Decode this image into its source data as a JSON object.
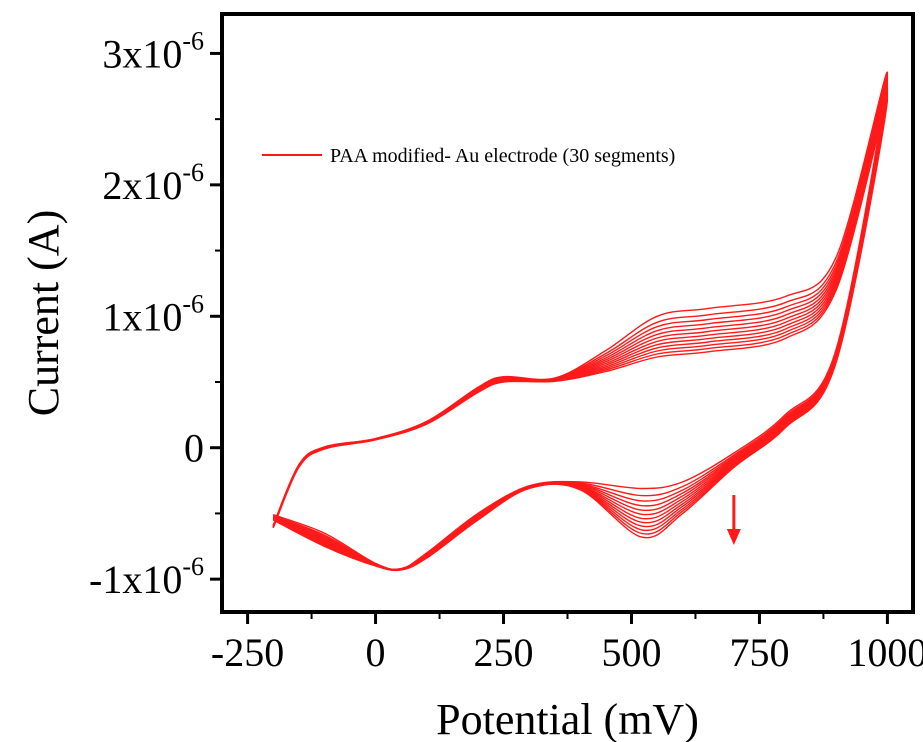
{
  "chart_data": {
    "type": "line",
    "title": "",
    "xlabel": "Potential (mV)",
    "ylabel": "Current (A)",
    "xlim": [
      -300,
      1050
    ],
    "ylim": [
      -1.25e-06,
      3.3e-06
    ],
    "x_ticks": [
      -250,
      0,
      250,
      500,
      750,
      1000
    ],
    "x_tick_labels": [
      "-250",
      "0",
      "250",
      "500",
      "750",
      "1000"
    ],
    "y_ticks": [
      {
        "value": -1e-06,
        "label": "-1x10",
        "exp": "-6"
      },
      {
        "value": 0,
        "label": "0",
        "exp": ""
      },
      {
        "value": 1e-06,
        "label": "1x10",
        "exp": "-6"
      },
      {
        "value": 2e-06,
        "label": "2x10",
        "exp": "-6"
      },
      {
        "value": 3e-06,
        "label": "3x10",
        "exp": "-6"
      }
    ],
    "grid": false,
    "legend": {
      "placement": "top-left",
      "label": "PAA modified- Au electrode (30 segments)"
    },
    "series_color": "#ff1a1a",
    "annotation": {
      "type": "arrow-down",
      "meaning": "decreasing current with cycle number",
      "x": 700,
      "y_start": -3.6e-07,
      "y_end": -7.4e-07
    },
    "cycles": {
      "count": 12,
      "note": "estimated data points; curves progressively decrease in current amplitude",
      "first": [
        [
          -200,
          -5.9e-07
        ],
        [
          -150,
          -1.3e-07
        ],
        [
          -100,
          6e-09
        ],
        [
          0,
          7e-08
        ],
        [
          100,
          2e-07
        ],
        [
          200,
          4.6e-07
        ],
        [
          250,
          5.4e-07
        ],
        [
          350,
          5.3e-07
        ],
        [
          450,
          7.4e-07
        ],
        [
          550,
          1e-06
        ],
        [
          650,
          1.06e-06
        ],
        [
          800,
          1.15e-06
        ],
        [
          900,
          1.45e-06
        ],
        [
          1000,
          2.85e-06
        ],
        [
          900,
          7.5e-07
        ],
        [
          800,
          2.5e-07
        ],
        [
          700,
          -4e-08
        ],
        [
          600,
          -2.6e-07
        ],
        [
          520,
          -3.1e-07
        ],
        [
          400,
          -2.6e-07
        ],
        [
          300,
          -2.9e-07
        ],
        [
          200,
          -5e-07
        ],
        [
          100,
          -8e-07
        ],
        [
          50,
          -9.2e-07
        ],
        [
          0,
          -8.8e-07
        ],
        [
          -100,
          -6.5e-07
        ],
        [
          -200,
          -5.1e-07
        ]
      ],
      "last": [
        [
          -200,
          -6.1e-07
        ],
        [
          -150,
          -1.5e-07
        ],
        [
          -100,
          -1e-08
        ],
        [
          0,
          6e-08
        ],
        [
          100,
          1.8e-07
        ],
        [
          200,
          4.2e-07
        ],
        [
          250,
          5e-07
        ],
        [
          350,
          5.05e-07
        ],
        [
          450,
          5.8e-07
        ],
        [
          550,
          6.9e-07
        ],
        [
          650,
          7.3e-07
        ],
        [
          800,
          8.3e-07
        ],
        [
          900,
          1.2e-06
        ],
        [
          1000,
          2.65e-06
        ],
        [
          900,
          6.5e-07
        ],
        [
          800,
          1.5e-07
        ],
        [
          700,
          -1.5e-07
        ],
        [
          600,
          -5e-07
        ],
        [
          520,
          -6.8e-07
        ],
        [
          400,
          -3.2e-07
        ],
        [
          300,
          -3.1e-07
        ],
        [
          200,
          -5.5e-07
        ],
        [
          100,
          -8.4e-07
        ],
        [
          50,
          -9.3e-07
        ],
        [
          0,
          -9e-07
        ],
        [
          -100,
          -7.5e-07
        ],
        [
          -200,
          -5.5e-07
        ]
      ]
    }
  }
}
